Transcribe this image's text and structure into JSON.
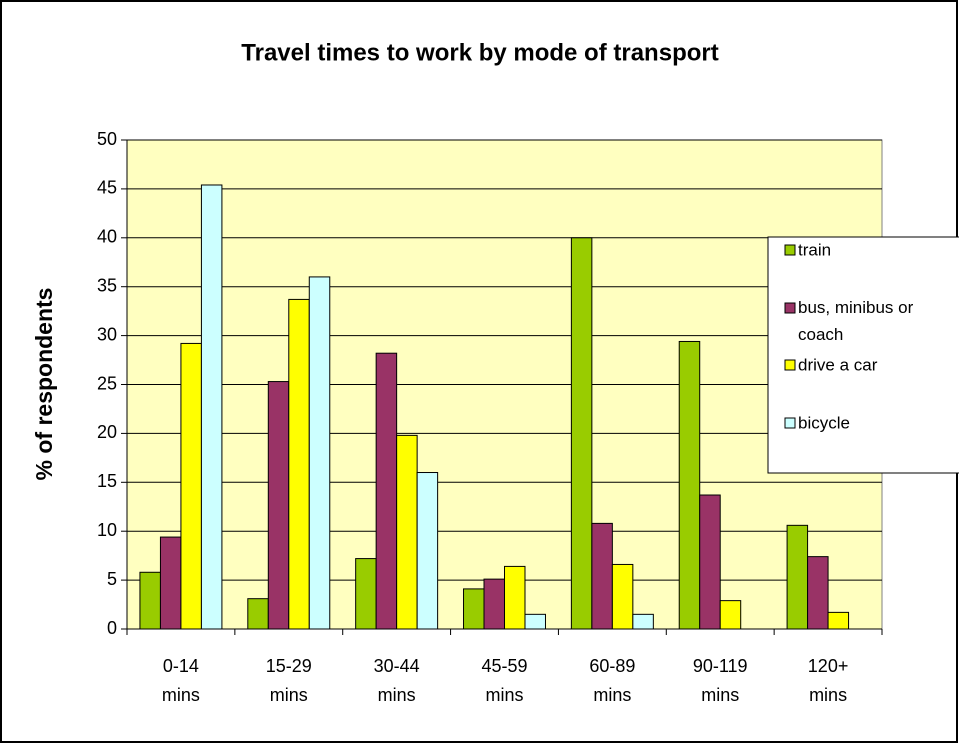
{
  "chart_data": {
    "type": "bar",
    "title": "Travel times to work by mode of transport",
    "y_label": "% of respondents",
    "categories": [
      "0-14 mins",
      "15-29 mins",
      "30-44 mins",
      "45-59 mins",
      "60-89 mins",
      "90-119 mins",
      "120+ mins"
    ],
    "series": [
      {
        "name": "train",
        "color": "#99cc00",
        "values": [
          5.8,
          3.1,
          7.2,
          4.1,
          40.0,
          29.4,
          10.6
        ]
      },
      {
        "name": "bus, minibus or coach",
        "color": "#993366",
        "values": [
          9.4,
          25.3,
          28.2,
          5.1,
          10.8,
          13.7,
          7.4
        ]
      },
      {
        "name": "drive a car",
        "color": "#ffff00",
        "values": [
          29.2,
          33.7,
          19.8,
          6.4,
          6.6,
          2.9,
          1.7
        ]
      },
      {
        "name": "bicycle",
        "color": "#ccffff",
        "values": [
          45.4,
          36.0,
          16.0,
          1.5,
          1.5,
          null,
          null
        ]
      }
    ],
    "ylim": [
      0,
      50
    ],
    "yticks": [
      0,
      5,
      10,
      15,
      20,
      25,
      30,
      35,
      40,
      45,
      50
    ],
    "grid": true,
    "legend": "right"
  }
}
